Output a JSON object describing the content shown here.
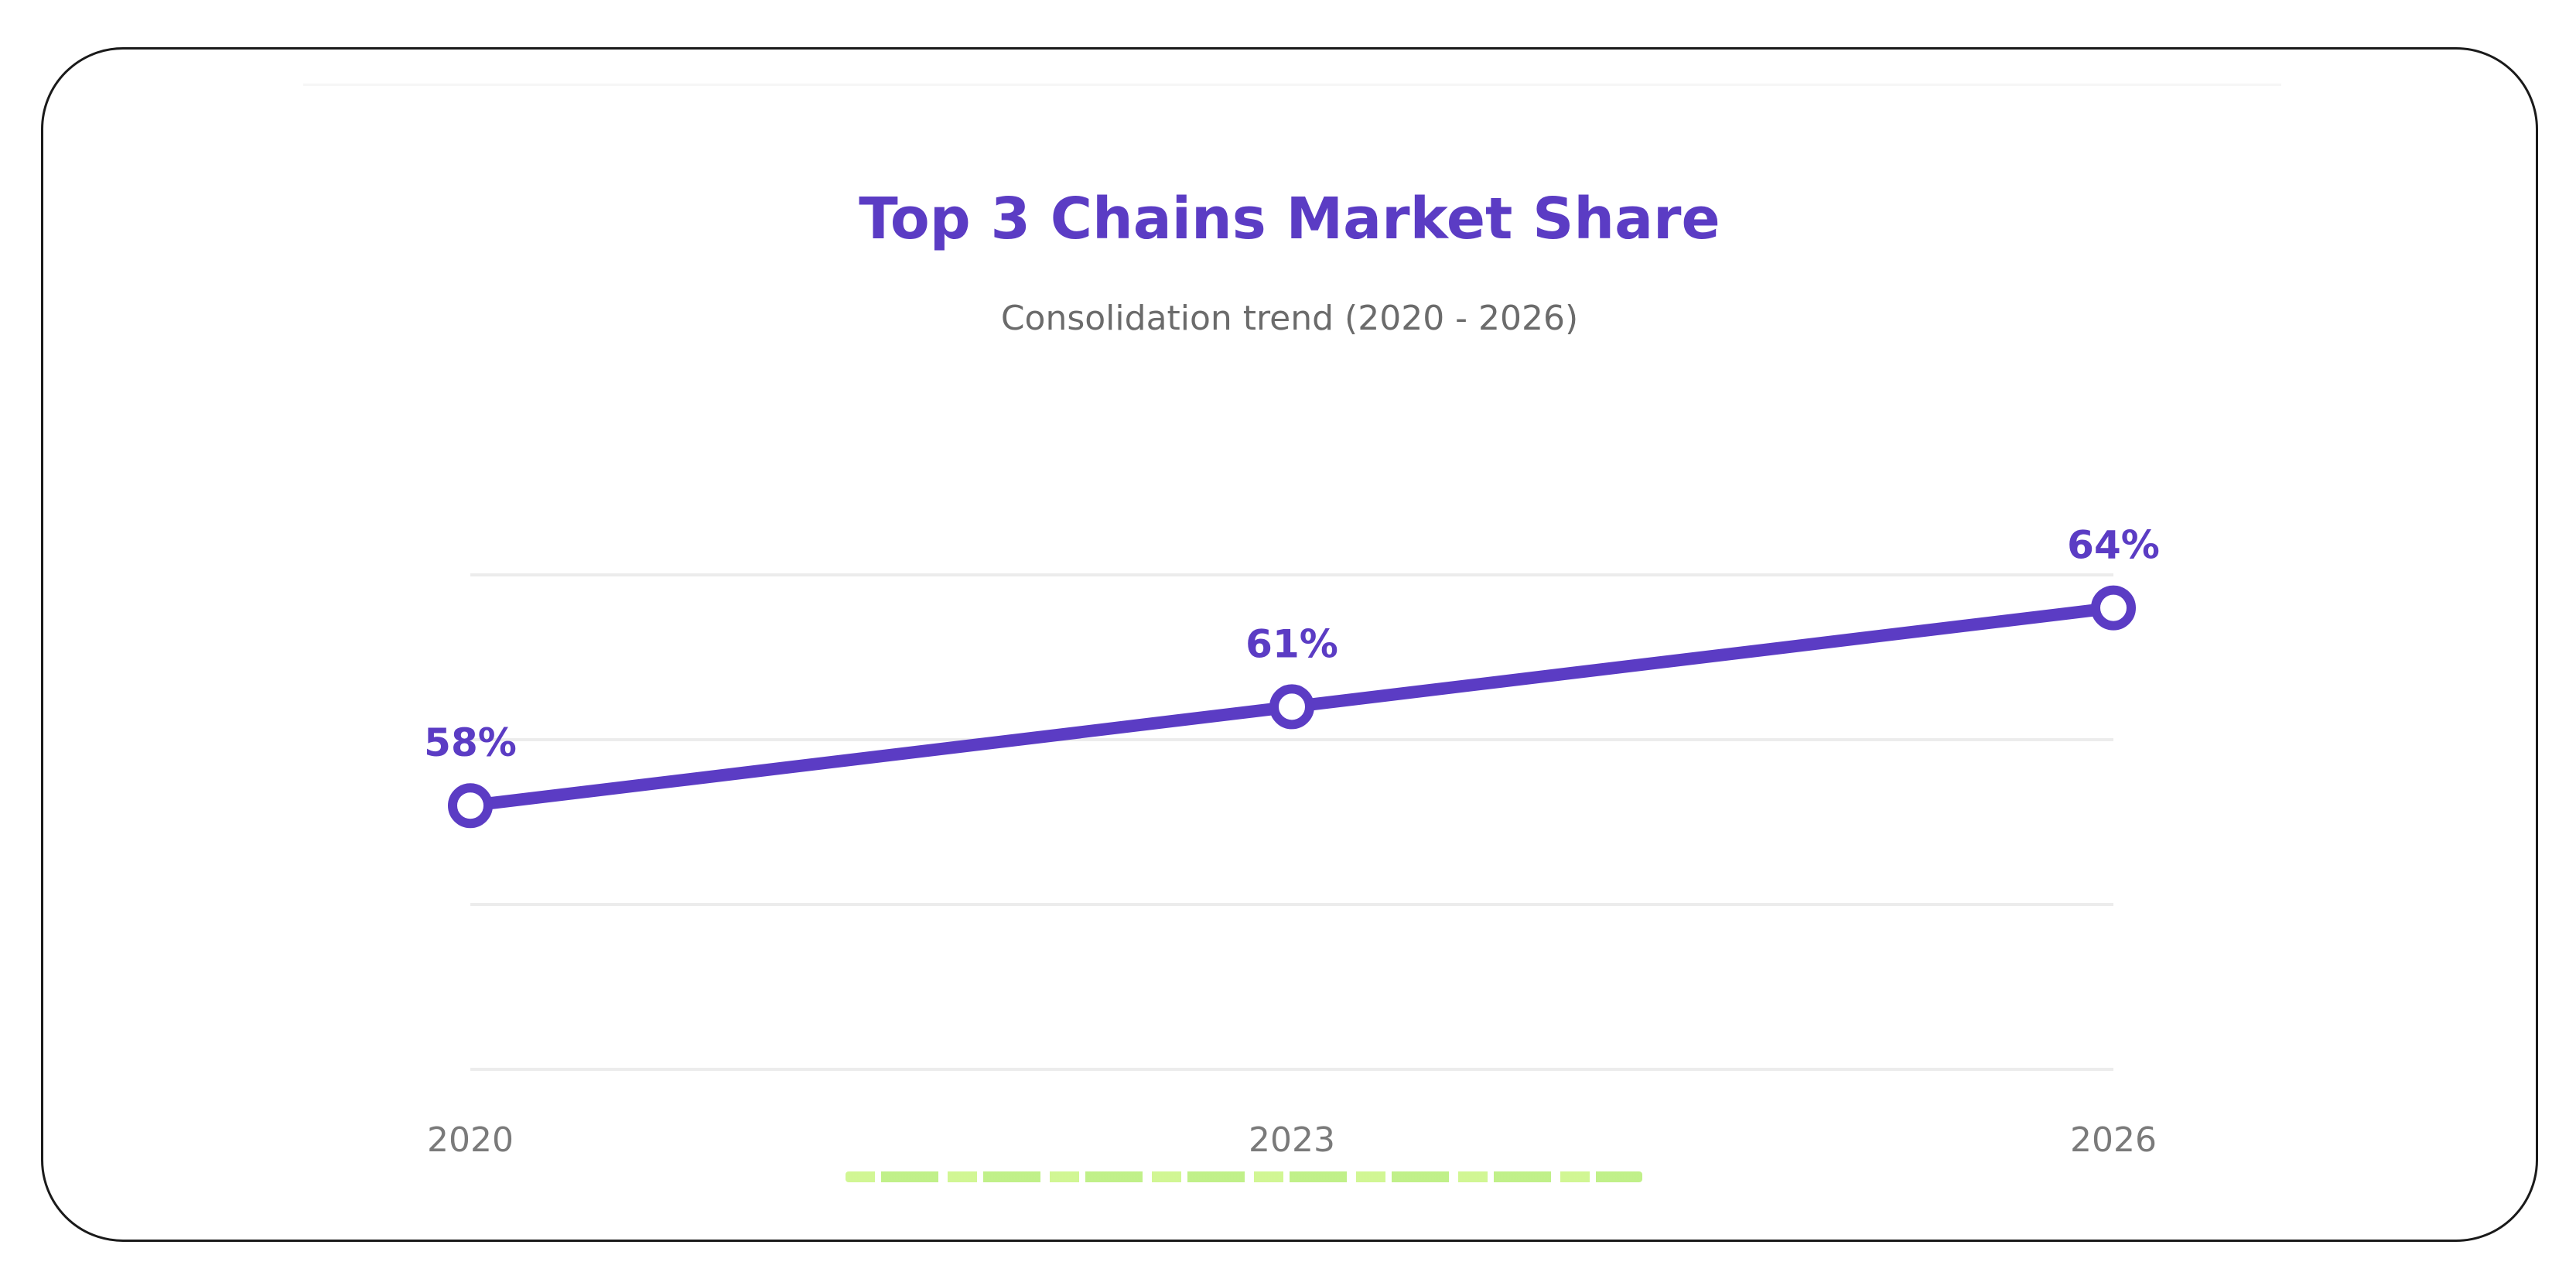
{
  "chart_data": {
    "type": "line",
    "title": "Top 3 Chains Market Share",
    "subtitle": "Consolidation trend (2020 - 2026)",
    "categories": [
      "2020",
      "2023",
      "2026"
    ],
    "series": [
      {
        "values": [
          58,
          61,
          64
        ],
        "labels": [
          "58%",
          "61%",
          "64%"
        ]
      }
    ],
    "ylim": [
      50,
      65
    ],
    "grid": true,
    "legend": "none"
  },
  "colors": {
    "line": "#5b3cc4",
    "title": "#5b3cc4",
    "subtitle": "#6b6b6b",
    "tick": "#7a7a7a",
    "grid": "#ececec",
    "marker_fill": "#ffffff"
  }
}
